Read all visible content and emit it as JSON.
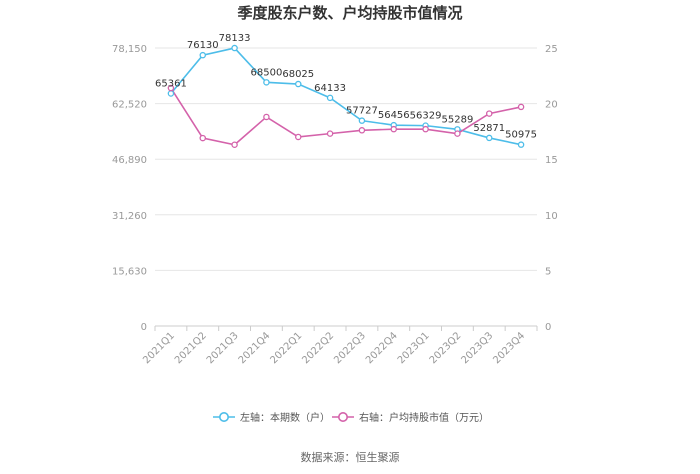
{
  "chart_data": {
    "type": "line",
    "title": "季度股东户数、户均持股市值情况",
    "source": "数据来源：恒生聚源",
    "categories": [
      "2021Q1",
      "2021Q2",
      "2021Q3",
      "2021Q4",
      "2022Q1",
      "2022Q2",
      "2022Q3",
      "2022Q4",
      "2023Q1",
      "2023Q2",
      "2023Q3",
      "2023Q4"
    ],
    "left_axis": {
      "ticks": [
        0,
        15630,
        31260,
        46890,
        62520,
        78150
      ],
      "tick_labels": [
        "0",
        "15,630",
        "31,260",
        "46,890",
        "62,520",
        "78,150"
      ],
      "ylim": [
        0,
        78150
      ]
    },
    "right_axis": {
      "ticks": [
        0,
        5,
        10,
        15,
        20,
        25
      ],
      "tick_labels": [
        "0",
        "5",
        "10",
        "15",
        "20",
        "25"
      ],
      "ylim": [
        0,
        25
      ]
    },
    "series": [
      {
        "name": "左轴：本期数（户）",
        "axis": "left",
        "color": "#4dbde9",
        "values": [
          65361,
          76130,
          78133,
          68500,
          68025,
          64133,
          57727,
          56456,
          56329,
          55289,
          52871,
          50975
        ],
        "labels": [
          "65361",
          "76130",
          "78133",
          "68500",
          "68025",
          "64133",
          "57727",
          "56456",
          "56329",
          "55289",
          "52871",
          "50975"
        ]
      },
      {
        "name": "右轴：户均持股市值（万元）",
        "axis": "right",
        "color": "#d462aa",
        "values": [
          21.4,
          16.9,
          16.3,
          18.8,
          17.0,
          17.3,
          17.6,
          17.7,
          17.7,
          17.3,
          19.1,
          19.7
        ]
      }
    ],
    "grid": true,
    "legend_position": "bottom"
  }
}
